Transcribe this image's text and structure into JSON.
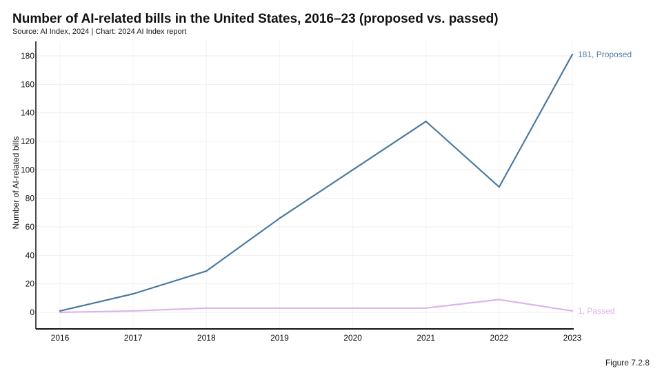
{
  "title": "Number of AI-related bills in the United States, 2016–23 (proposed vs. passed)",
  "subtitle": "Source: AI Index, 2024 | Chart: 2024 AI Index report",
  "figure_label": "Figure 7.2.8",
  "chart_data": {
    "type": "line",
    "title": "Number of AI-related bills in the United States, 2016–23 (proposed vs. passed)",
    "xlabel": "",
    "ylabel": "Number of AI-related bills",
    "x": [
      "2016",
      "2017",
      "2018",
      "2019",
      "2020",
      "2021",
      "2022",
      "2023"
    ],
    "yticks": [
      0,
      20,
      40,
      60,
      80,
      100,
      120,
      140,
      160,
      180
    ],
    "ylim": [
      -12,
      190
    ],
    "grid": true,
    "series": [
      {
        "name": "Proposed",
        "end_label": "181, Proposed",
        "color": "#4a7aa2",
        "values": [
          1,
          13,
          29,
          66,
          100,
          134,
          88,
          181
        ]
      },
      {
        "name": "Passed",
        "end_label": "1, Passed",
        "color": "#dcb4ec",
        "values": [
          0,
          1,
          3,
          3,
          3,
          3,
          9,
          1
        ]
      }
    ]
  }
}
